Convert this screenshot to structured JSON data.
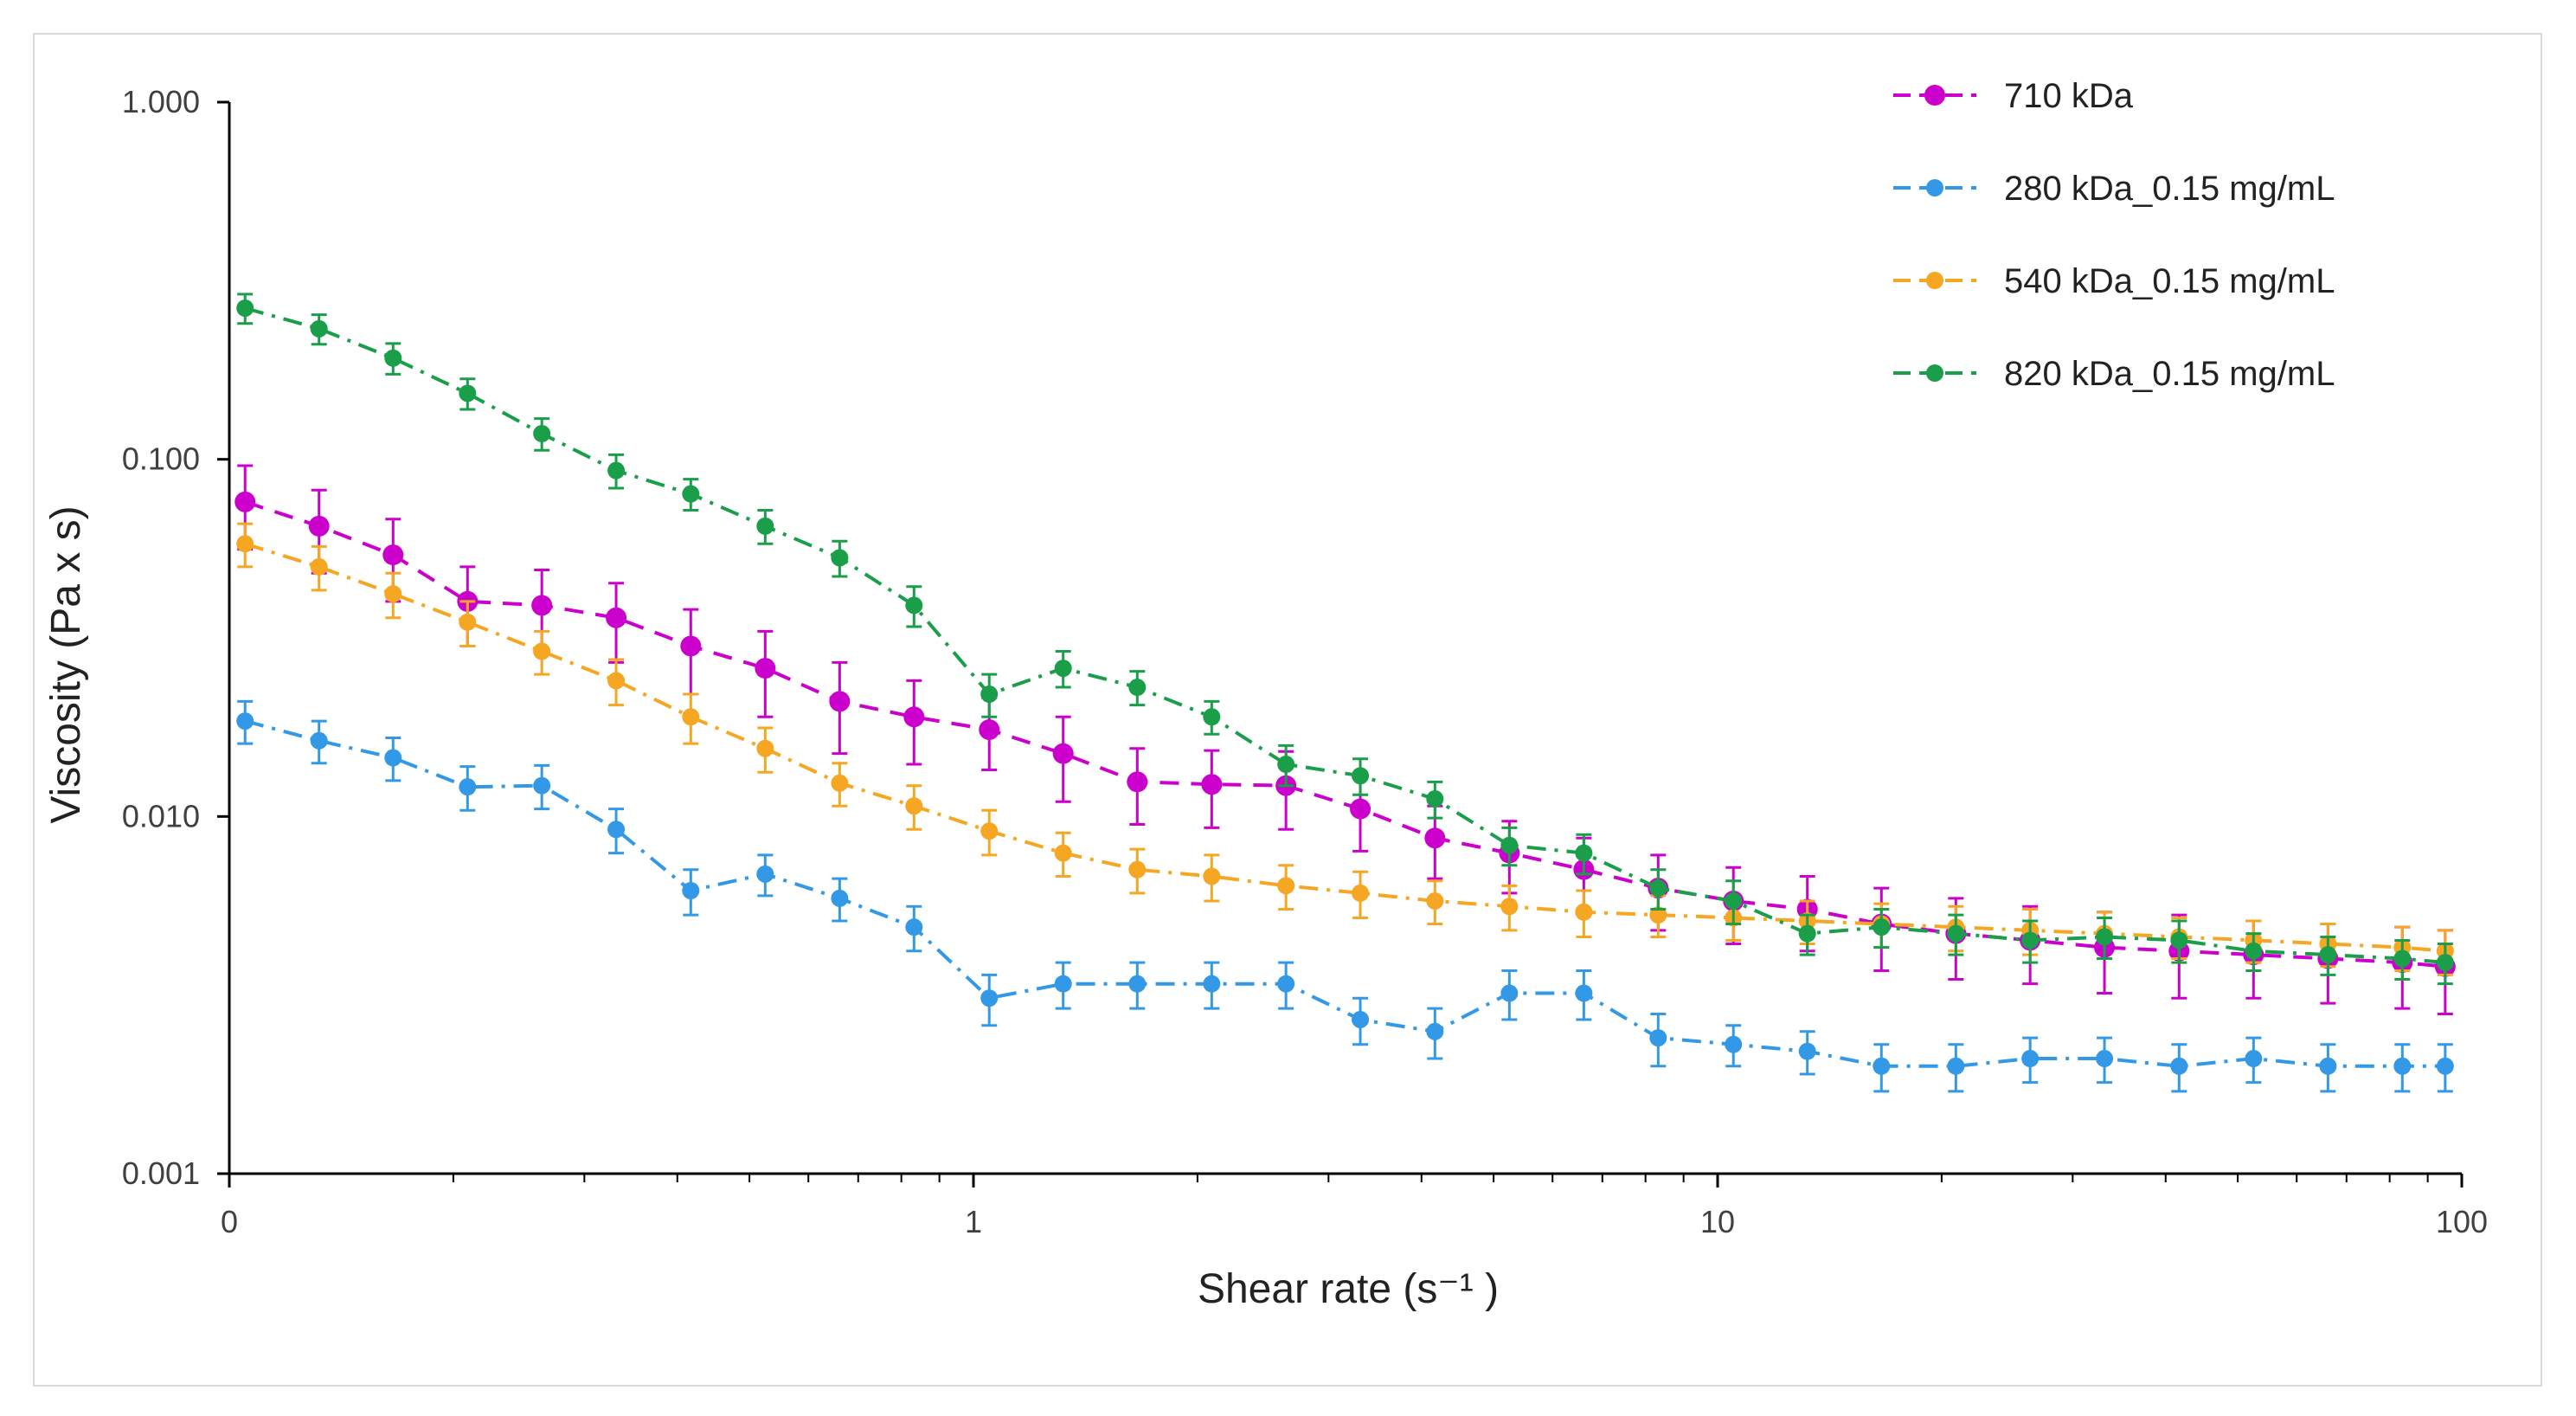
{
  "chart_data": {
    "type": "line",
    "title": "",
    "xlabel": "Shear rate (s⁻¹ )",
    "ylabel": "Viscosity (Pa x s)",
    "xscale": "log",
    "yscale": "log",
    "xlim": [
      0.1,
      100
    ],
    "ylim": [
      0.001,
      1
    ],
    "x_tick_labels": [
      "0",
      "1",
      "10",
      "100"
    ],
    "y_tick_labels": [
      "1.000",
      "0.100",
      "0.010",
      "0.001"
    ],
    "legend_position": "top-right",
    "x": [
      0.105,
      0.132,
      0.166,
      0.209,
      0.263,
      0.331,
      0.417,
      0.525,
      0.661,
      0.832,
      1.05,
      1.32,
      1.66,
      2.09,
      2.63,
      3.31,
      4.17,
      5.25,
      6.61,
      8.32,
      10.5,
      13.2,
      16.6,
      20.9,
      26.3,
      33.1,
      41.7,
      52.5,
      66.1,
      83.2,
      95.0
    ],
    "series": [
      {
        "name": "710 kDa",
        "color": "#cc00cc",
        "dash": "dashed",
        "values": [
          0.076,
          0.065,
          0.054,
          0.04,
          0.039,
          0.036,
          0.03,
          0.026,
          0.021,
          0.019,
          0.0175,
          0.015,
          0.0125,
          0.0123,
          0.0122,
          0.0105,
          0.0087,
          0.0079,
          0.0071,
          0.0063,
          0.0058,
          0.0055,
          0.005,
          0.0047,
          0.0045,
          0.0043,
          0.0042,
          0.0041,
          0.004,
          0.0039,
          0.0038
        ],
        "errors": [
          0.02,
          0.017,
          0.014,
          0.01,
          0.01,
          0.009,
          0.008,
          0.007,
          0.006,
          0.005,
          0.004,
          0.004,
          0.003,
          0.003,
          0.003,
          0.0025,
          0.002,
          0.0018,
          0.0016,
          0.0015,
          0.0014,
          0.0013,
          0.0013,
          0.0012,
          0.0011,
          0.0011,
          0.0011,
          0.001,
          0.001,
          0.001,
          0.001
        ]
      },
      {
        "name": "280 kDa_0.15 mg/mL",
        "color": "#3399e6",
        "dash": "dashdot",
        "values": [
          0.0185,
          0.0163,
          0.0146,
          0.0121,
          0.0122,
          0.0092,
          0.0062,
          0.0069,
          0.0059,
          0.0049,
          0.0031,
          0.0034,
          0.0034,
          0.0034,
          0.0034,
          0.0027,
          0.0025,
          0.0032,
          0.0032,
          0.0024,
          0.0023,
          0.0022,
          0.002,
          0.002,
          0.0021,
          0.0021,
          0.002,
          0.0021,
          0.002,
          0.002,
          0.002
        ],
        "errors": [
          0.0025,
          0.0022,
          0.002,
          0.0017,
          0.0017,
          0.0013,
          0.0009,
          0.0009,
          0.0008,
          0.0007,
          0.0005,
          0.0005,
          0.0005,
          0.0005,
          0.0005,
          0.0004,
          0.0004,
          0.0005,
          0.0005,
          0.0004,
          0.0003,
          0.0003,
          0.0003,
          0.0003,
          0.0003,
          0.0003,
          0.0003,
          0.0003,
          0.0003,
          0.0003,
          0.0003
        ]
      },
      {
        "name": "540 kDa_0.15 mg/mL",
        "color": "#f5a623",
        "dash": "dashdot",
        "values": [
          0.058,
          0.05,
          0.042,
          0.035,
          0.029,
          0.024,
          0.019,
          0.0155,
          0.0124,
          0.0107,
          0.0091,
          0.0079,
          0.0071,
          0.0068,
          0.0064,
          0.0061,
          0.0058,
          0.0056,
          0.0054,
          0.0053,
          0.0052,
          0.0051,
          0.005,
          0.0049,
          0.0048,
          0.0047,
          0.0046,
          0.0045,
          0.0044,
          0.0043,
          0.0042
        ],
        "errors": [
          0.008,
          0.007,
          0.006,
          0.005,
          0.004,
          0.0035,
          0.003,
          0.0022,
          0.0017,
          0.0015,
          0.0013,
          0.0011,
          0.001,
          0.001,
          0.0009,
          0.0009,
          0.0008,
          0.0008,
          0.0008,
          0.0007,
          0.0007,
          0.0007,
          0.0007,
          0.0007,
          0.0007,
          0.0007,
          0.0006,
          0.0006,
          0.0006,
          0.0006,
          0.0006
        ]
      },
      {
        "name": "820 kDa_0.15 mg/mL",
        "color": "#1a9e4a",
        "dash": "dashdot",
        "values": [
          0.265,
          0.232,
          0.192,
          0.153,
          0.118,
          0.093,
          0.08,
          0.065,
          0.053,
          0.039,
          0.022,
          0.026,
          0.023,
          0.019,
          0.014,
          0.013,
          0.0112,
          0.0083,
          0.0079,
          0.0063,
          0.0058,
          0.0047,
          0.0049,
          0.0047,
          0.0045,
          0.0046,
          0.0045,
          0.0042,
          0.0041,
          0.004,
          0.0039
        ],
        "errors": [
          0.025,
          0.022,
          0.019,
          0.015,
          0.012,
          0.01,
          0.008,
          0.007,
          0.006,
          0.005,
          0.003,
          0.003,
          0.0025,
          0.002,
          0.0018,
          0.0015,
          0.0013,
          0.001,
          0.001,
          0.0008,
          0.0008,
          0.0006,
          0.0006,
          0.0006,
          0.0006,
          0.0006,
          0.0006,
          0.0005,
          0.0005,
          0.0005,
          0.0005
        ]
      }
    ]
  }
}
